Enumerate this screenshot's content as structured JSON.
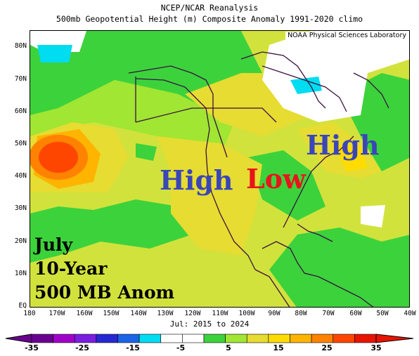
{
  "header": {
    "title_line1": "NCEP/NCAR Reanalysis",
    "title_line2": "500mb Geopotential Height (m) Composite Anomaly 1991-2020 climo"
  },
  "credit": "NOAA Physical Sciences Laboratory",
  "latitude_labels": [
    "80N",
    "70N",
    "60N",
    "50N",
    "40N",
    "30N",
    "20N",
    "10N",
    "EQ"
  ],
  "longitude_labels": [
    "180",
    "170W",
    "160W",
    "150W",
    "140W",
    "130W",
    "120W",
    "110W",
    "100W",
    "90W",
    "80W",
    "70W",
    "60W",
    "50W",
    "40W"
  ],
  "date_range": "Jul: 2015 to 2024",
  "annotations": {
    "high_west": "High",
    "low": "Low",
    "high_east": "High",
    "caption_month": "July",
    "caption_period": "10-Year",
    "caption_level": "500 MB Anom"
  },
  "annotation_colors": {
    "high": "#3a46b8",
    "low": "#e8141c",
    "caption": "#000000"
  },
  "colorbar": {
    "labels": [
      "-35",
      "-25",
      "-15",
      "-5",
      "5",
      "15",
      "25",
      "35"
    ],
    "colors": [
      "#6a0090",
      "#a000c8",
      "#7a1ee0",
      "#2828d2",
      "#1c64e6",
      "#00dcf0",
      "#ffffff",
      "#ffffff",
      "#3cd23c",
      "#a0e632",
      "#e6dc32",
      "#ffdc00",
      "#ffb400",
      "#ff8200",
      "#ff4600",
      "#e61400"
    ]
  }
}
